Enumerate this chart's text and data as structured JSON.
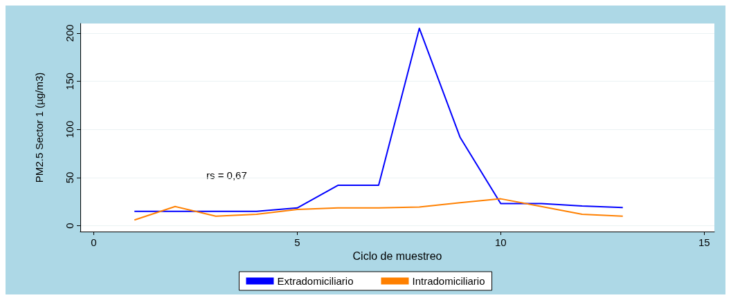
{
  "chart_data": {
    "type": "line",
    "xlabel": "Ciclo de muestreo",
    "ylabel": "PM2.5 Sector 1 (µg/m3)",
    "x": [
      1,
      2,
      3,
      4,
      5,
      6,
      7,
      8,
      9,
      10,
      11,
      12,
      13
    ],
    "series": [
      {
        "name": "Extradomiciliario",
        "color": "#0000ff",
        "values": [
          15,
          15,
          15,
          15,
          18.5,
          42,
          42,
          205,
          92,
          23,
          23,
          20.5,
          19
        ]
      },
      {
        "name": "Intradomiciliario",
        "color": "#ff8000",
        "values": [
          6,
          20,
          10,
          12,
          17,
          18.5,
          18.5,
          19.5,
          24,
          28,
          20,
          12,
          10
        ]
      }
    ],
    "xlim": [
      -0.33,
      15.25
    ],
    "xticks": [
      0,
      5,
      10,
      15
    ],
    "ylim": [
      -6,
      210
    ],
    "yticks": [
      0,
      50,
      100,
      150,
      200
    ],
    "annotations": [
      "rs = 0,67"
    ],
    "grid": "y",
    "legend": "bottom",
    "marker": "none",
    "line_style": "solid"
  }
}
